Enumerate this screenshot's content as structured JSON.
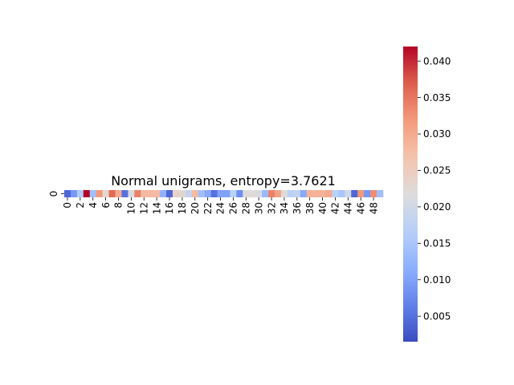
{
  "chart_data": {
    "type": "heatmap",
    "title": "Normal unigrams, entropy=3.7621",
    "xlabel": "",
    "ylabel": "",
    "rows": [
      "0"
    ],
    "columns": [
      0,
      1,
      2,
      3,
      4,
      5,
      6,
      7,
      8,
      9,
      10,
      11,
      12,
      13,
      14,
      15,
      16,
      17,
      18,
      19,
      20,
      21,
      22,
      23,
      24,
      25,
      26,
      27,
      28,
      29,
      30,
      31,
      32,
      33,
      34,
      35,
      36,
      37,
      38,
      39,
      40,
      41,
      42,
      43,
      44,
      45,
      46,
      47,
      48,
      49
    ],
    "x_tick_labels": [
      "0",
      "2",
      "4",
      "6",
      "8",
      "10",
      "12",
      "14",
      "16",
      "18",
      "20",
      "22",
      "24",
      "26",
      "28",
      "30",
      "32",
      "34",
      "36",
      "38",
      "40",
      "42",
      "44",
      "46",
      "48"
    ],
    "values": [
      [
        0.004,
        0.009,
        0.016,
        0.042,
        0.014,
        0.032,
        0.023,
        0.036,
        0.03,
        0.005,
        0.021,
        0.034,
        0.028,
        0.028,
        0.028,
        0.012,
        0.004,
        0.024,
        0.023,
        0.018,
        0.028,
        0.014,
        0.011,
        0.005,
        0.01,
        0.01,
        0.017,
        0.008,
        0.022,
        0.022,
        0.021,
        0.013,
        0.034,
        0.031,
        0.022,
        0.017,
        0.018,
        0.011,
        0.029,
        0.029,
        0.029,
        0.03,
        0.017,
        0.015,
        0.02,
        0.004,
        0.032,
        0.009,
        0.033,
        0.014
      ]
    ],
    "colormap": "coolwarm",
    "vmin": 0.0015,
    "vmax": 0.042,
    "colorbar_ticks": [
      "0.005",
      "0.010",
      "0.015",
      "0.020",
      "0.025",
      "0.030",
      "0.035",
      "0.040"
    ],
    "legend": "colorbar-right",
    "grid": false
  }
}
